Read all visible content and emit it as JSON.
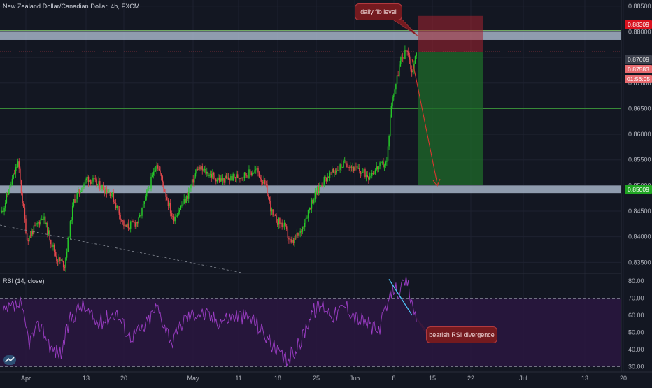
{
  "header": {
    "symbol_title": "New Zealand Dollar/Canadian Dollar, 4h, FXCM",
    "rsi_title": "RSI (14, close)"
  },
  "annotations": {
    "fib_note": "daily fib level",
    "divergence_note": "bearish RSI divergence"
  },
  "price_axis": {
    "ticks": [
      "0.88500",
      "0.88000",
      "0.87500",
      "0.87000",
      "0.86500",
      "0.86000",
      "0.85500",
      "0.85000",
      "0.84500",
      "0.84000",
      "0.83500"
    ],
    "target_label": "0.88309",
    "entry_label": "0.87609",
    "last_label": "0.87583",
    "timer_label": "01:56:05",
    "stop_label": "0.85009"
  },
  "rsi_axis": {
    "ticks": [
      "80.00",
      "70.00",
      "60.00",
      "50.00",
      "40.00",
      "30.00"
    ]
  },
  "time_axis": {
    "ticks": [
      "Apr",
      "13",
      "20",
      "May",
      "11",
      "18",
      "25",
      "Jun",
      "8",
      "15",
      "22",
      "Jul",
      "13",
      "20"
    ]
  },
  "colors": {
    "background": "#131722",
    "up_candle": "#26c929",
    "down_candle": "#e2474c",
    "zone_band": "#b2c2d6",
    "target_zone": "#a52330",
    "profit_zone": "#1f6b2a",
    "rsi_line": "#9c3dc5",
    "divergence_line": "#4fc3f7",
    "arrow": "#e5352f"
  },
  "icons": {
    "logo": "tradingview-logo-icon"
  },
  "chart_data": [
    {
      "type": "candlestick",
      "title": "New Zealand Dollar/Canadian Dollar, 4h, FXCM",
      "xlabel": "",
      "ylabel": "",
      "x": [
        "Apr",
        "13",
        "20",
        "May",
        "11",
        "18",
        "25",
        "Jun",
        "8",
        "15",
        "22"
      ],
      "close": [
        0.8425,
        0.8475,
        0.8495,
        0.849,
        0.847,
        0.8445,
        0.853,
        0.854,
        0.8765,
        0.8758,
        0.8758
      ],
      "ylim": [
        0.833,
        0.8862
      ],
      "levels": {
        "resistance_zone": [
          0.8787,
          0.88
        ],
        "support_zone": [
          0.8488,
          0.85
        ],
        "horizontal": 0.865
      },
      "position": {
        "entry": 0.87609,
        "target": 0.88309,
        "stop": 0.85009
      },
      "grid": true
    },
    {
      "type": "line",
      "title": "RSI (14, close)",
      "xlabel": "",
      "ylabel": "",
      "x": [
        "Apr",
        "13",
        "20",
        "May",
        "11",
        "18",
        "25",
        "Jun",
        "8",
        "15",
        "22"
      ],
      "series": [
        {
          "values": [
            62,
            58,
            57,
            55,
            52,
            42,
            60,
            67,
            81,
            63,
            57
          ]
        }
      ],
      "ylim": [
        27,
        84
      ],
      "bands": [
        30,
        70
      ],
      "grid": true
    }
  ]
}
